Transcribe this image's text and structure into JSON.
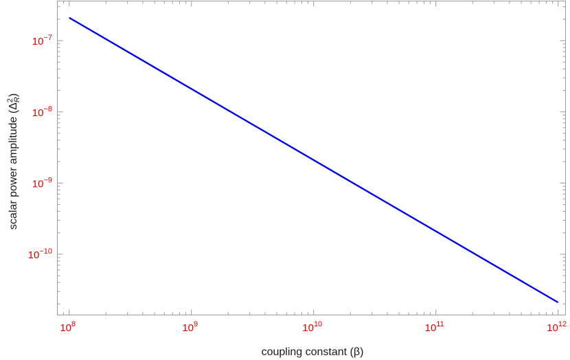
{
  "chart_data": {
    "type": "line",
    "scale": "log-log",
    "xlabel": "coupling constant (β)",
    "ylabel_main": "scalar power amplitude (Δ",
    "ylabel_sup": "2",
    "ylabel_sub": "R",
    "ylabel_close": ")",
    "xlim": [
      80000000.0,
      1150000000000.0
    ],
    "ylim": [
      1.4e-11,
      3.6e-07
    ],
    "x_ticks": [
      {
        "value": 100000000.0,
        "base": "10",
        "exp": "8"
      },
      {
        "value": 1000000000.0,
        "base": "10",
        "exp": "9"
      },
      {
        "value": 10000000000.0,
        "base": "10",
        "exp": "10"
      },
      {
        "value": 100000000000.0,
        "base": "10",
        "exp": "11"
      },
      {
        "value": 1000000000000.0,
        "base": "10",
        "exp": "12"
      }
    ],
    "y_ticks": [
      {
        "value": 1e-07,
        "base": "10",
        "exp": "−7"
      },
      {
        "value": 1e-08,
        "base": "10",
        "exp": "−8"
      },
      {
        "value": 1e-09,
        "base": "10",
        "exp": "−9"
      },
      {
        "value": 1e-10,
        "base": "10",
        "exp": "−10"
      }
    ],
    "series": [
      {
        "x": [
          100000000.0,
          1000000000000.0
        ],
        "y": [
          2.1e-07,
          2.1e-11
        ]
      }
    ],
    "colors": {
      "line": "#0000ee",
      "tick_label": "#e00000",
      "frame": "#9a9a9a"
    },
    "grid": false
  }
}
